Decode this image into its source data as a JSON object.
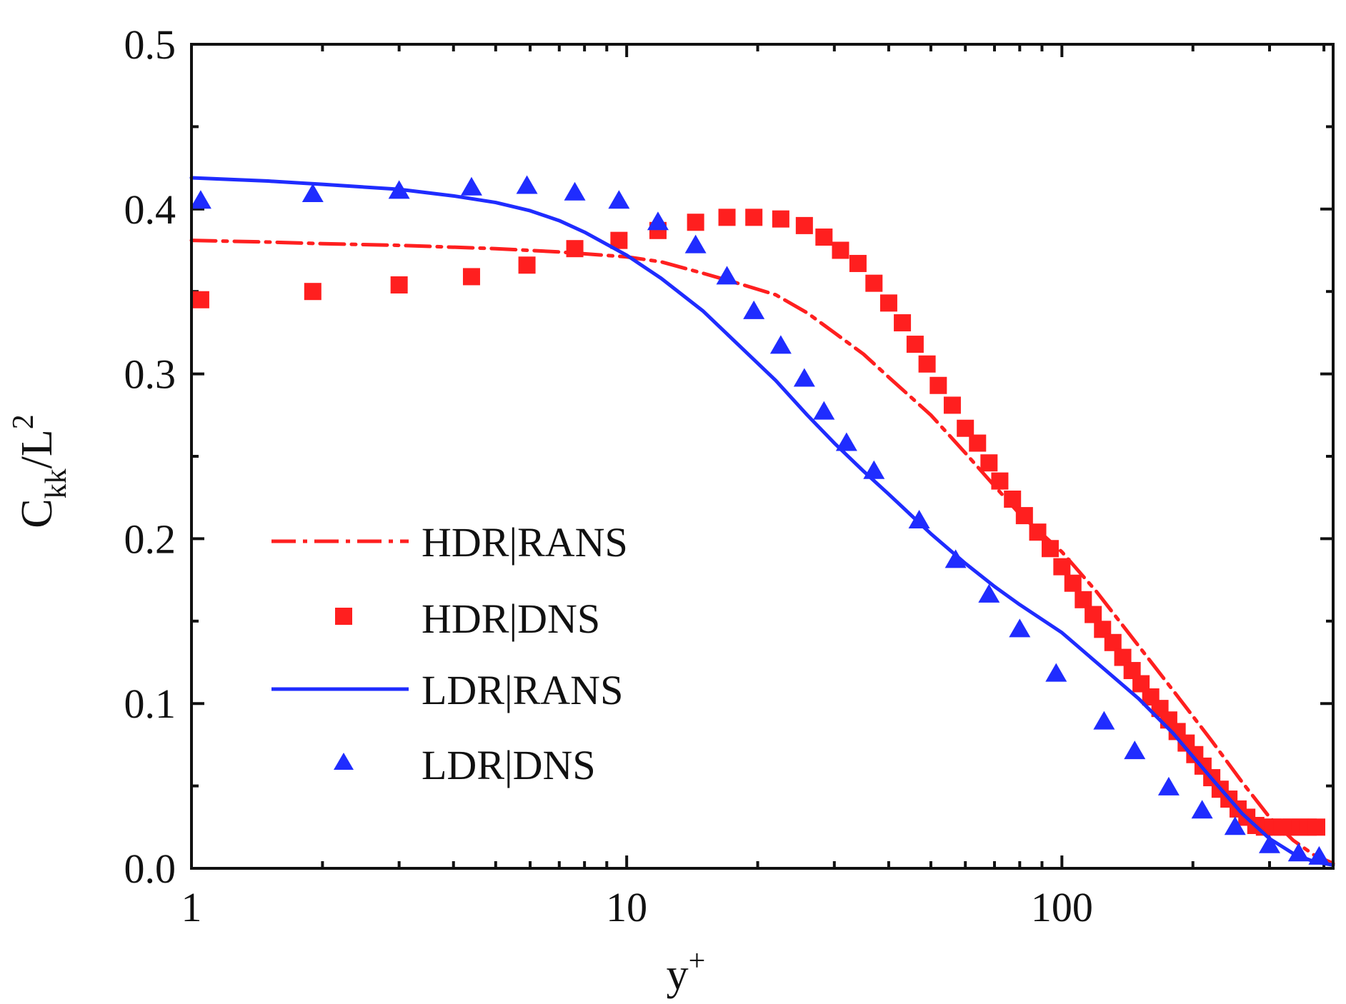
{
  "chart_data": {
    "type": "line",
    "x_scale": "log",
    "xlim": [
      1,
      420
    ],
    "ylim": [
      0.0,
      0.5
    ],
    "xlabel_main": "y",
    "xlabel_sup": "+",
    "ylabel_main": "C",
    "ylabel_sub": "kk",
    "ylabel_tail": "/L",
    "ylabel_sup": "2",
    "x_ticks": [
      {
        "value": 1,
        "label": "1"
      },
      {
        "value": 10,
        "label": "10"
      },
      {
        "value": 100,
        "label": "100"
      }
    ],
    "y_ticks": [
      {
        "value": 0.0,
        "label": "0.0"
      },
      {
        "value": 0.1,
        "label": "0.1"
      },
      {
        "value": 0.2,
        "label": "0.2"
      },
      {
        "value": 0.3,
        "label": "0.3"
      },
      {
        "value": 0.4,
        "label": "0.4"
      },
      {
        "value": 0.5,
        "label": "0.5"
      }
    ],
    "legend": [
      {
        "name": "HDR|RANS",
        "color": "#ff1f1f",
        "style": "dashdot"
      },
      {
        "name": "HDR|DNS",
        "color": "#ff1f1f",
        "style": "square"
      },
      {
        "name": "LDR|RANS",
        "color": "#1f2cff",
        "style": "solid"
      },
      {
        "name": "LDR|DNS",
        "color": "#1f2cff",
        "style": "triangle"
      }
    ],
    "series": [
      {
        "name": "HDR|RANS",
        "type": "line",
        "color": "#ff1f1f",
        "dash": "dashdot",
        "x": [
          1,
          1.5,
          2,
          3,
          5,
          7,
          10,
          12,
          15,
          18,
          22,
          26,
          30,
          35,
          40,
          50,
          60,
          70,
          80,
          100,
          120,
          150,
          180,
          220,
          260,
          300,
          340,
          380,
          420
        ],
        "y": [
          0.381,
          0.38,
          0.379,
          0.378,
          0.376,
          0.374,
          0.371,
          0.368,
          0.361,
          0.355,
          0.348,
          0.337,
          0.325,
          0.312,
          0.298,
          0.275,
          0.252,
          0.232,
          0.215,
          0.192,
          0.168,
          0.135,
          0.108,
          0.078,
          0.052,
          0.031,
          0.017,
          0.008,
          0.003
        ]
      },
      {
        "name": "HDR|DNS",
        "type": "scatter",
        "color": "#ff1f1f",
        "marker": "square",
        "x": [
          1.05,
          1.9,
          3.0,
          4.4,
          5.9,
          7.6,
          9.6,
          11.8,
          14.4,
          17.0,
          19.6,
          22.6,
          25.6,
          28.4,
          31.0,
          34.0,
          37.0,
          40.0,
          43.0,
          46.0,
          49.0,
          52.0,
          56.0,
          60.0,
          64.0,
          68.0,
          72.0,
          77.0,
          82.0,
          88.0,
          94.0,
          100.0,
          106.0,
          112.0,
          118.0,
          124.0,
          131.0,
          138.0,
          145.0,
          152.0,
          160.0,
          168.0,
          176.0,
          184.0,
          193.0,
          202.0,
          211.0,
          221.0,
          231.0,
          242.0,
          254.0,
          266.0,
          279.0,
          292.0,
          306.0,
          321.0,
          336.0,
          352.0,
          368.0,
          385.0
        ],
        "y": [
          0.345,
          0.35,
          0.354,
          0.359,
          0.366,
          0.376,
          0.381,
          0.387,
          0.392,
          0.395,
          0.395,
          0.394,
          0.39,
          0.383,
          0.375,
          0.367,
          0.355,
          0.343,
          0.331,
          0.318,
          0.306,
          0.293,
          0.281,
          0.267,
          0.258,
          0.246,
          0.235,
          0.224,
          0.214,
          0.204,
          0.194,
          0.183,
          0.173,
          0.163,
          0.154,
          0.145,
          0.137,
          0.128,
          0.12,
          0.112,
          0.104,
          0.097,
          0.09,
          0.083,
          0.076,
          0.069,
          0.062,
          0.055,
          0.048,
          0.042,
          0.036,
          0.031,
          0.026,
          0.025,
          0.025,
          0.025,
          0.025,
          0.025,
          0.025,
          0.025
        ]
      },
      {
        "name": "LDR|RANS",
        "type": "line",
        "color": "#1f2cff",
        "dash": "solid",
        "x": [
          1,
          1.5,
          2,
          3,
          4,
          5,
          6,
          7,
          8,
          10,
          12,
          15,
          18,
          22,
          26,
          30,
          35,
          40,
          50,
          60,
          70,
          80,
          100,
          120,
          150,
          180,
          220,
          260,
          300,
          340,
          380,
          420
        ],
        "y": [
          0.419,
          0.417,
          0.415,
          0.412,
          0.408,
          0.404,
          0.399,
          0.393,
          0.386,
          0.372,
          0.358,
          0.338,
          0.318,
          0.296,
          0.275,
          0.258,
          0.241,
          0.227,
          0.203,
          0.185,
          0.171,
          0.16,
          0.143,
          0.125,
          0.103,
          0.082,
          0.055,
          0.033,
          0.018,
          0.009,
          0.004,
          0.002
        ]
      },
      {
        "name": "LDR|DNS",
        "type": "scatter",
        "color": "#1f2cff",
        "marker": "triangle",
        "x": [
          1.05,
          1.9,
          3.0,
          4.4,
          5.9,
          7.6,
          9.6,
          11.8,
          14.4,
          17.0,
          19.6,
          22.6,
          25.6,
          28.4,
          32.0,
          37.0,
          47.0,
          57.0,
          68.0,
          80.0,
          97.0,
          125.0,
          147.0,
          176.0,
          210.0,
          250.0,
          300.0,
          350.0,
          390.0
        ],
        "y": [
          0.405,
          0.409,
          0.411,
          0.413,
          0.414,
          0.41,
          0.405,
          0.392,
          0.378,
          0.359,
          0.338,
          0.317,
          0.297,
          0.277,
          0.258,
          0.241,
          0.211,
          0.187,
          0.166,
          0.145,
          0.118,
          0.089,
          0.071,
          0.049,
          0.035,
          0.025,
          0.014,
          0.009,
          0.007
        ]
      }
    ]
  }
}
